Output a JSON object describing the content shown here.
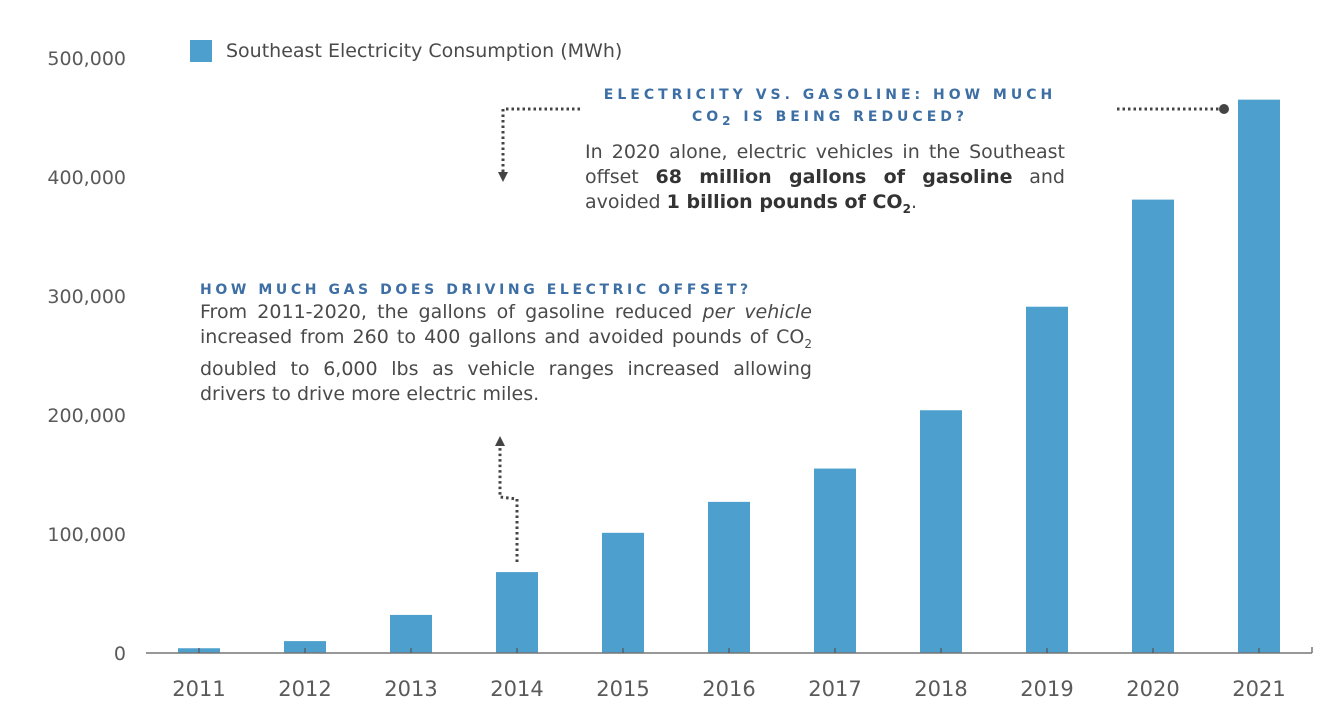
{
  "chart_data": {
    "type": "bar",
    "title": "",
    "xlabel": "",
    "ylabel": "",
    "categories": [
      "2011",
      "2012",
      "2013",
      "2014",
      "2015",
      "2016",
      "2017",
      "2018",
      "2019",
      "2020",
      "2021"
    ],
    "series": [
      {
        "name": "Southeast Electricity Consumption (MWh)",
        "color": "#4da0ce",
        "values": [
          4000,
          10000,
          32000,
          68000,
          101000,
          127000,
          155000,
          204000,
          291000,
          381000,
          465000
        ]
      }
    ],
    "ylim": [
      0,
      500000
    ],
    "yticks": [
      0,
      100000,
      200000,
      300000,
      400000,
      500000
    ],
    "ytick_labels": [
      "0",
      "100,000",
      "200,000",
      "300,000",
      "400,000",
      "500,000"
    ],
    "grid": false,
    "legend": {
      "position": "top-left",
      "entries": [
        "Southeast Electricity Consumption (MWh)"
      ]
    },
    "annotations": [
      {
        "id": "co2-reduced",
        "title_line1": "ELECTRICITY VS. GASOLINE: HOW MUCH",
        "title_line2_pre": "CO",
        "title_line2_sub": "2",
        "title_line2_post": " IS BEING REDUCED?",
        "body_pre": "In 2020 alone, electric vehicles in the Southeast offset ",
        "body_bold1": "68 million gallons of gasoline",
        "body_mid": " and avoided ",
        "body_bold2_pre": "1 billion pounds of CO",
        "body_bold2_sub": "2",
        "body_post": ".",
        "points_to": "2021"
      },
      {
        "id": "gas-offset",
        "title": "HOW MUCH GAS DOES DRIVING ELECTRIC OFFSET?",
        "body_pre": "From 2011-2020, the gallons of gasoline reduced ",
        "body_italic1": "per",
        "body_sp": " ",
        "body_italic2": "vehicle",
        "body_mid": " increased from 260 to 400 gallons and avoided pounds of CO",
        "body_sub": "2",
        "body_post": " doubled to 6,000 lbs as vehicle ranges increased allowing drivers to drive more electric miles.",
        "points_to": "2014"
      }
    ]
  },
  "colors": {
    "bar": "#4da0ce",
    "annotation_title": "#3d6fa5",
    "axis": "#777777",
    "connector": "#444444"
  }
}
